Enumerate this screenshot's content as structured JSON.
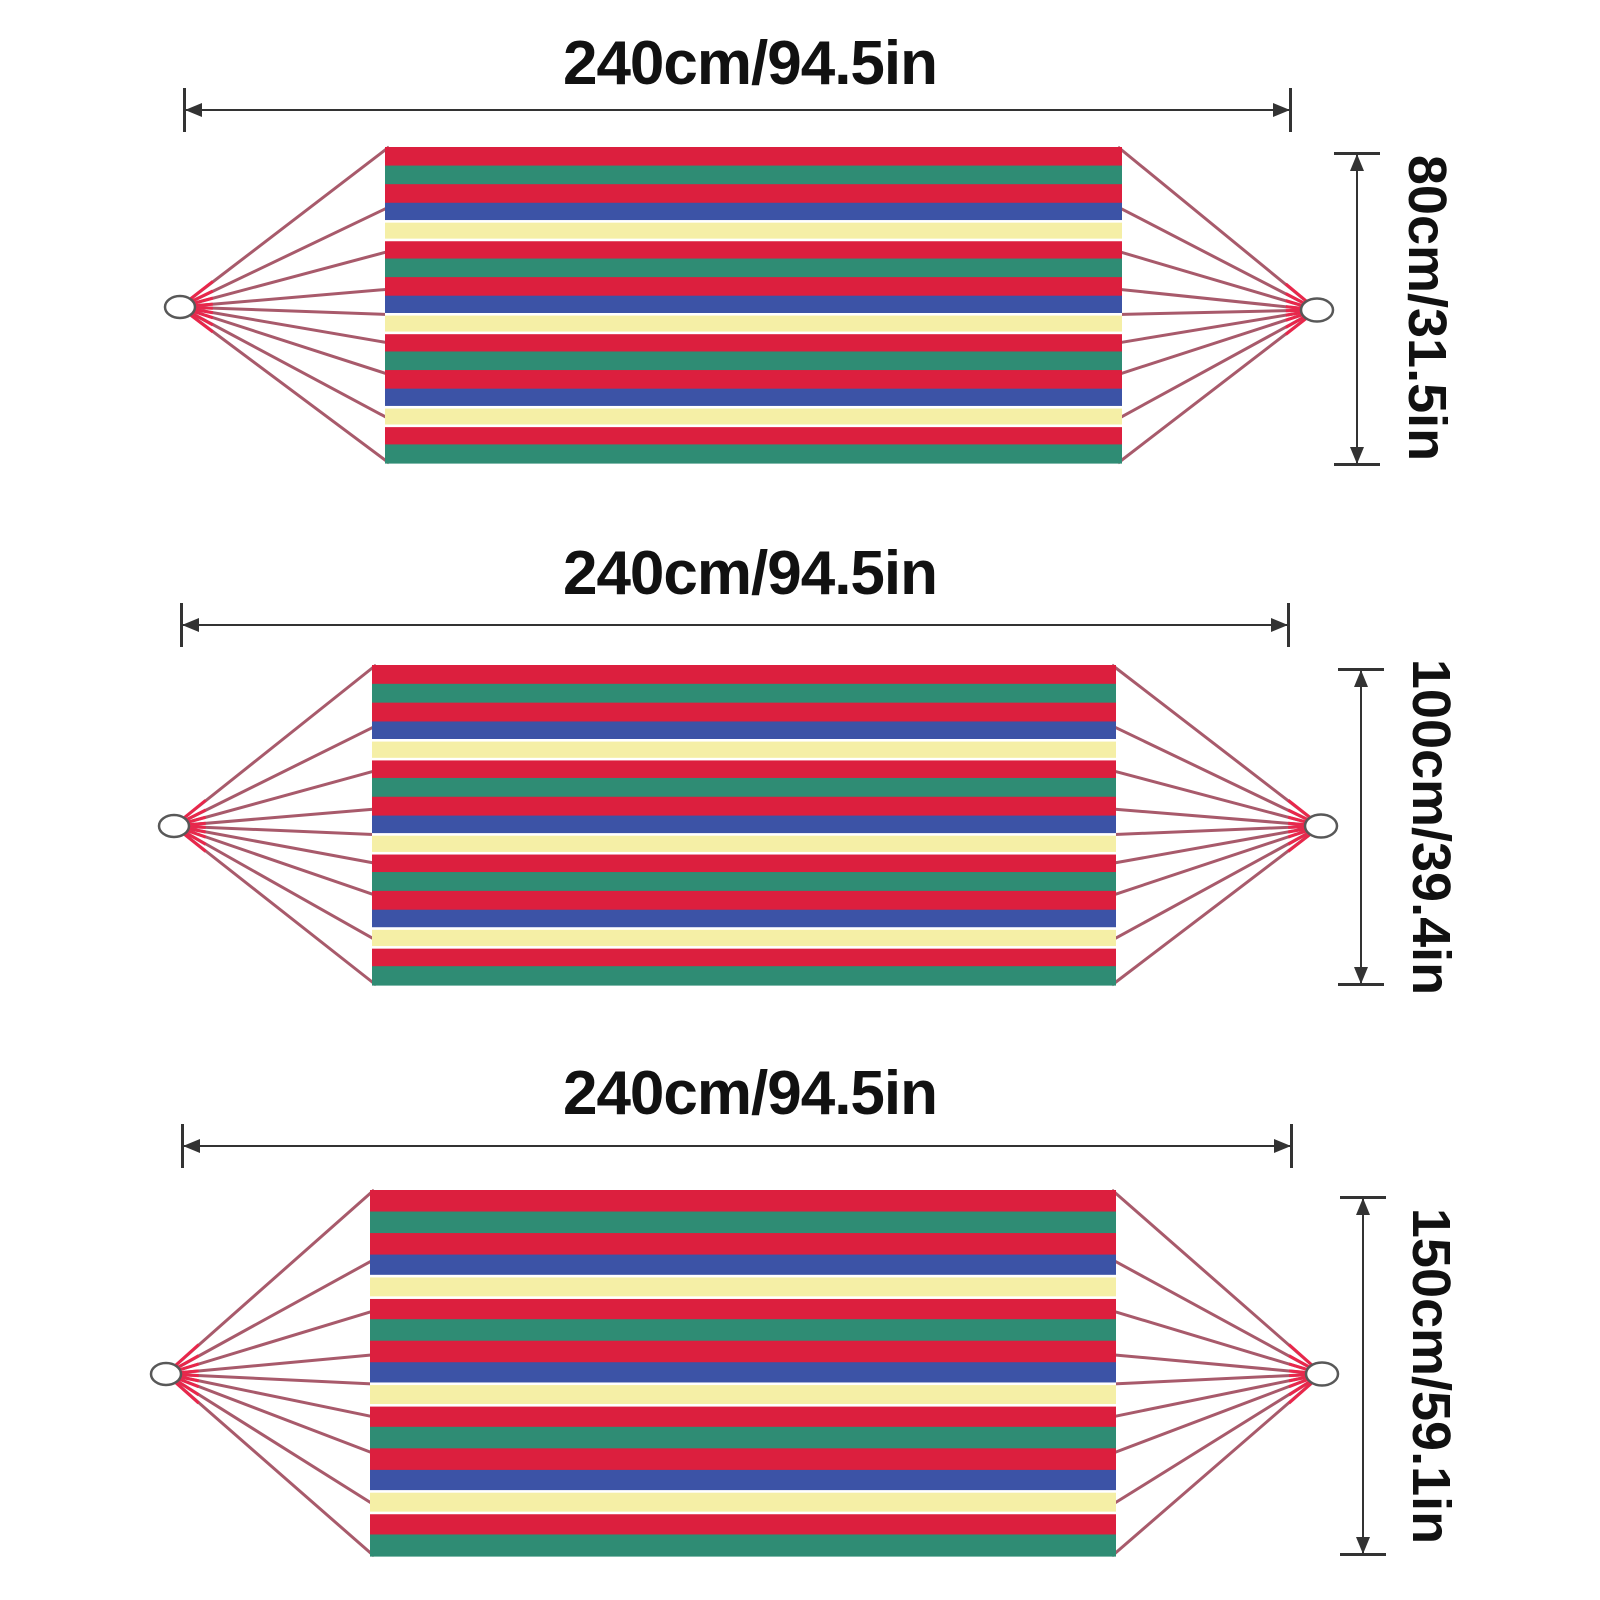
{
  "colors": {
    "stripe_red": "#DC1F3E",
    "stripe_green": "#2F8C74",
    "stripe_blue": "#3C53A6",
    "stripe_yellow": "#F5EFA6",
    "stripe_separator": "#FFFFFF",
    "rope": "#A85A6B",
    "rope_bright": "#E8274B",
    "ring_outline": "#585858",
    "dimension_line": "#333333",
    "text": "#111111",
    "background": "#FFFFFF"
  },
  "stripe_sequence": [
    "red",
    "green",
    "red",
    "blue",
    "yellow",
    "red",
    "green",
    "red",
    "blue",
    "yellow",
    "red",
    "green",
    "red",
    "blue",
    "yellow",
    "red",
    "green"
  ],
  "rope_fractions": [
    0,
    0.19,
    0.33,
    0.45,
    0.53,
    0.62,
    0.72,
    0.86,
    1
  ],
  "hammocks": [
    {
      "width_label": "240cm/94.5in",
      "height_label": "80cm/31.5in"
    },
    {
      "width_label": "240cm/94.5in",
      "height_label": "100cm/39.4in"
    },
    {
      "width_label": "240cm/94.5in",
      "height_label": "150cm/59.1in"
    }
  ]
}
